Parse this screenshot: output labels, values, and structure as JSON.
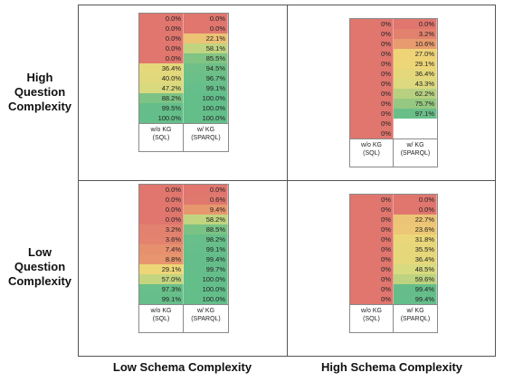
{
  "row_labels": {
    "high_question": "High\nQuestion\nComplexity",
    "low_question": "Low\nQuestion\nComplexity"
  },
  "col_labels": {
    "low_schema": "Low Schema Complexity",
    "high_schema": "High Schema Complexity"
  },
  "chart_data": [
    {
      "type": "heatmap",
      "quadrant": "top-left",
      "columns": [
        "w/o KG\n(SQL)",
        "w/ KG\n(SPARQL)"
      ],
      "series": [
        {
          "name": "w/o KG\n(SQL)",
          "values": [
            0.0,
            0.0,
            0.0,
            0.0,
            0.0,
            36.4,
            40.0,
            47.2,
            88.2,
            99.5,
            100.0
          ]
        },
        {
          "name": "w/ KG\n(SPARQL)",
          "values": [
            0.0,
            0.0,
            22.1,
            58.1,
            85.5,
            94.5,
            96.7,
            99.1,
            100.0,
            100.0,
            100.0
          ]
        }
      ],
      "format": [
        "pct1",
        "pct1"
      ]
    },
    {
      "type": "heatmap",
      "quadrant": "top-right",
      "columns": [
        "w/o KG\n(SQL)",
        "w/ KG\n(SPARQL)"
      ],
      "series": [
        {
          "name": "w/o KG\n(SQL)",
          "values": [
            0,
            0,
            0,
            0,
            0,
            0,
            0,
            0,
            0,
            0,
            0,
            0
          ]
        },
        {
          "name": "w/ KG\n(SPARQL)",
          "values": [
            0.0,
            3.2,
            10.6,
            27.0,
            29.1,
            36.4,
            43.3,
            62.2,
            75.7,
            97.1
          ]
        }
      ],
      "format": [
        "int",
        "pct1"
      ]
    },
    {
      "type": "heatmap",
      "quadrant": "bottom-left",
      "columns": [
        "w/o KG\n(SQL)",
        "w/ KG\n(SPARQL)"
      ],
      "series": [
        {
          "name": "w/o KG\n(SQL)",
          "values": [
            0.0,
            0.0,
            0.0,
            0.0,
            3.2,
            3.6,
            7.4,
            8.8,
            29.1,
            57.0,
            97.3,
            99.1
          ]
        },
        {
          "name": "w/ KG\n(SPARQL)",
          "values": [
            0.0,
            0.6,
            9.4,
            58.2,
            88.5,
            98.2,
            99.1,
            99.4,
            99.7,
            100.0,
            100.0,
            100.0
          ]
        }
      ],
      "format": [
        "pct1",
        "pct1"
      ]
    },
    {
      "type": "heatmap",
      "quadrant": "bottom-right",
      "columns": [
        "w/o KG\n(SQL)",
        "w/ KG\n(SPARQL)"
      ],
      "series": [
        {
          "name": "w/o KG\n(SQL)",
          "values": [
            0,
            0,
            0,
            0,
            0,
            0,
            0,
            0,
            0,
            0,
            0
          ]
        },
        {
          "name": "w/ KG\n(SPARQL)",
          "values": [
            0.0,
            0.0,
            22.7,
            23.6,
            31.8,
            35.5,
            36.4,
            48.5,
            59.6,
            99.4,
            99.4
          ]
        }
      ],
      "format": [
        "int",
        "pct1"
      ]
    }
  ]
}
